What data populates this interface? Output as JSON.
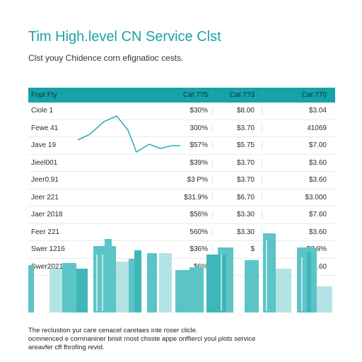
{
  "header": {
    "title": "Tim High.level CN Service Clst",
    "subtitle": "Clst youy Chidence corn efignatioc cests."
  },
  "table": {
    "columns": [
      "Fopt Fty",
      "Cat 7?5",
      "Cat 7?3",
      "Cat 770"
    ],
    "rows": [
      [
        "Ciole 1",
        "$30%",
        "$8.00",
        "$3.04"
      ],
      [
        "Fewe 41",
        "300%",
        "$3.70",
        "41069"
      ],
      [
        "Jave 19",
        "$57%",
        "$5.75",
        "$7.00"
      ],
      [
        "Jieel001",
        "$39%",
        "$3.70",
        "$3.60"
      ],
      [
        "Jeer0.91",
        "$3 P%",
        "$3.70",
        "$3.60"
      ],
      [
        "Jeer 221",
        "$31.9%",
        "$6.70",
        "$3.000"
      ],
      [
        "Jaer 2018",
        "$56%",
        "$3.30",
        "$7.60"
      ],
      [
        "Feer 221",
        "560%",
        "$3.30",
        "$3.60"
      ],
      [
        "Swer 1216",
        "$36%",
        "$",
        "$3.9%"
      ],
      [
        "Swer2021",
        "$6%",
        "$4",
        "$3.60"
      ]
    ]
  },
  "footer": {
    "lines": [
      "The reclustion yur care cenacel caretaes inte roser clicle.",
      "ocmnenced e cornnaniner brisit rnost chsste appe onffiercl youl plots service",
      "areavfer cff fhrofing revid."
    ]
  },
  "colors": {
    "accent": "#17a2a6",
    "title": "#1aa3a6",
    "skyline": "#5cc4c7",
    "skyline_light": "#a6dfe0"
  }
}
